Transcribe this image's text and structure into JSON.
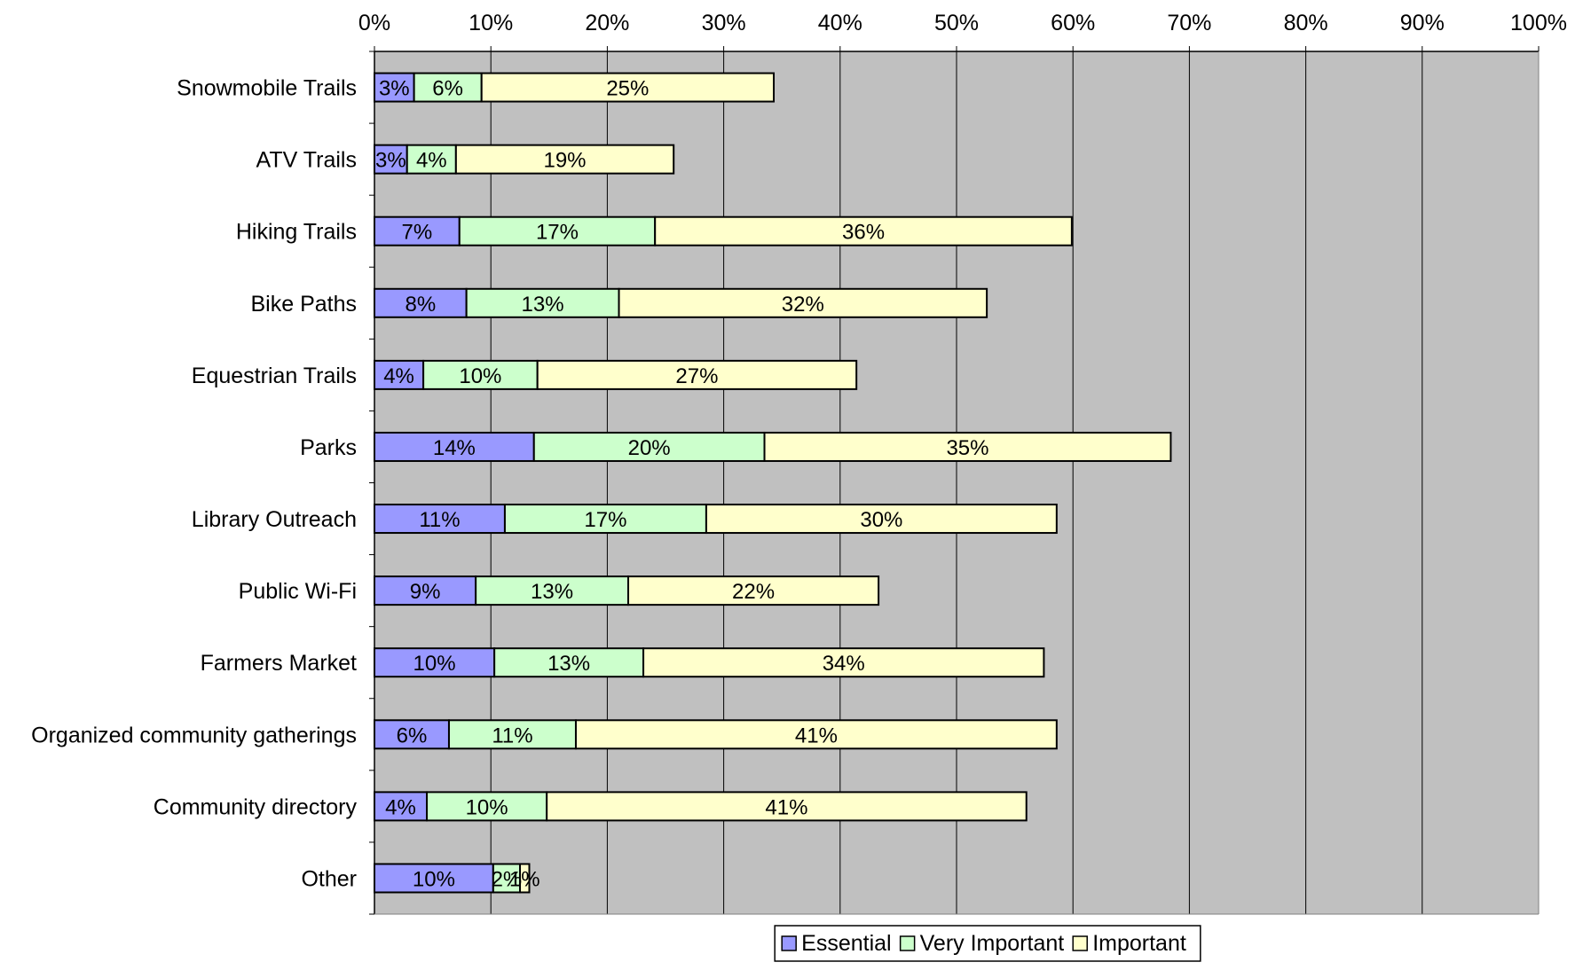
{
  "chart_data": {
    "type": "bar",
    "orientation": "horizontal",
    "stacked": true,
    "categories": [
      "Snowmobile Trails",
      "ATV Trails",
      "Hiking Trails",
      "Bike Paths",
      "Equestrian Trails",
      "Parks",
      "Library Outreach",
      "Public Wi-Fi",
      "Farmers Market",
      "Organized community gatherings",
      "Community directory",
      "Other"
    ],
    "series": [
      {
        "name": "Essential",
        "color": "#9999ff",
        "values": [
          3.4,
          2.8,
          7.3,
          7.9,
          4.2,
          13.7,
          11.2,
          8.7,
          10.3,
          6.4,
          4.5,
          10.2
        ],
        "labels": [
          "3%",
          "3%",
          "7%",
          "8%",
          "4%",
          "14%",
          "11%",
          "9%",
          "10%",
          "6%",
          "4%",
          "10%"
        ]
      },
      {
        "name": "Very Important",
        "color": "#ccffcc",
        "values": [
          5.8,
          4.2,
          16.8,
          13.1,
          9.8,
          19.8,
          17.3,
          13.1,
          12.8,
          10.9,
          10.3,
          2.3
        ],
        "labels": [
          "6%",
          "4%",
          "17%",
          "13%",
          "10%",
          "20%",
          "17%",
          "13%",
          "13%",
          "11%",
          "10%",
          "2%"
        ]
      },
      {
        "name": "Important",
        "color": "#ffffcc",
        "values": [
          25.1,
          18.7,
          35.8,
          31.6,
          27.4,
          34.9,
          30.1,
          21.5,
          34.4,
          41.3,
          41.2,
          0.8
        ],
        "labels": [
          "25%",
          "19%",
          "36%",
          "32%",
          "27%",
          "35%",
          "30%",
          "22%",
          "34%",
          "41%",
          "41%",
          "1%"
        ]
      }
    ],
    "xlim": [
      0,
      100
    ],
    "x_ticks": [
      "0%",
      "10%",
      "20%",
      "30%",
      "40%",
      "50%",
      "60%",
      "70%",
      "80%",
      "90%",
      "100%"
    ],
    "x_axis_position": "top",
    "grid": true,
    "plot_background": "#c0c0c0",
    "legend_position": "bottom",
    "title": "",
    "xlabel": "",
    "ylabel": ""
  }
}
